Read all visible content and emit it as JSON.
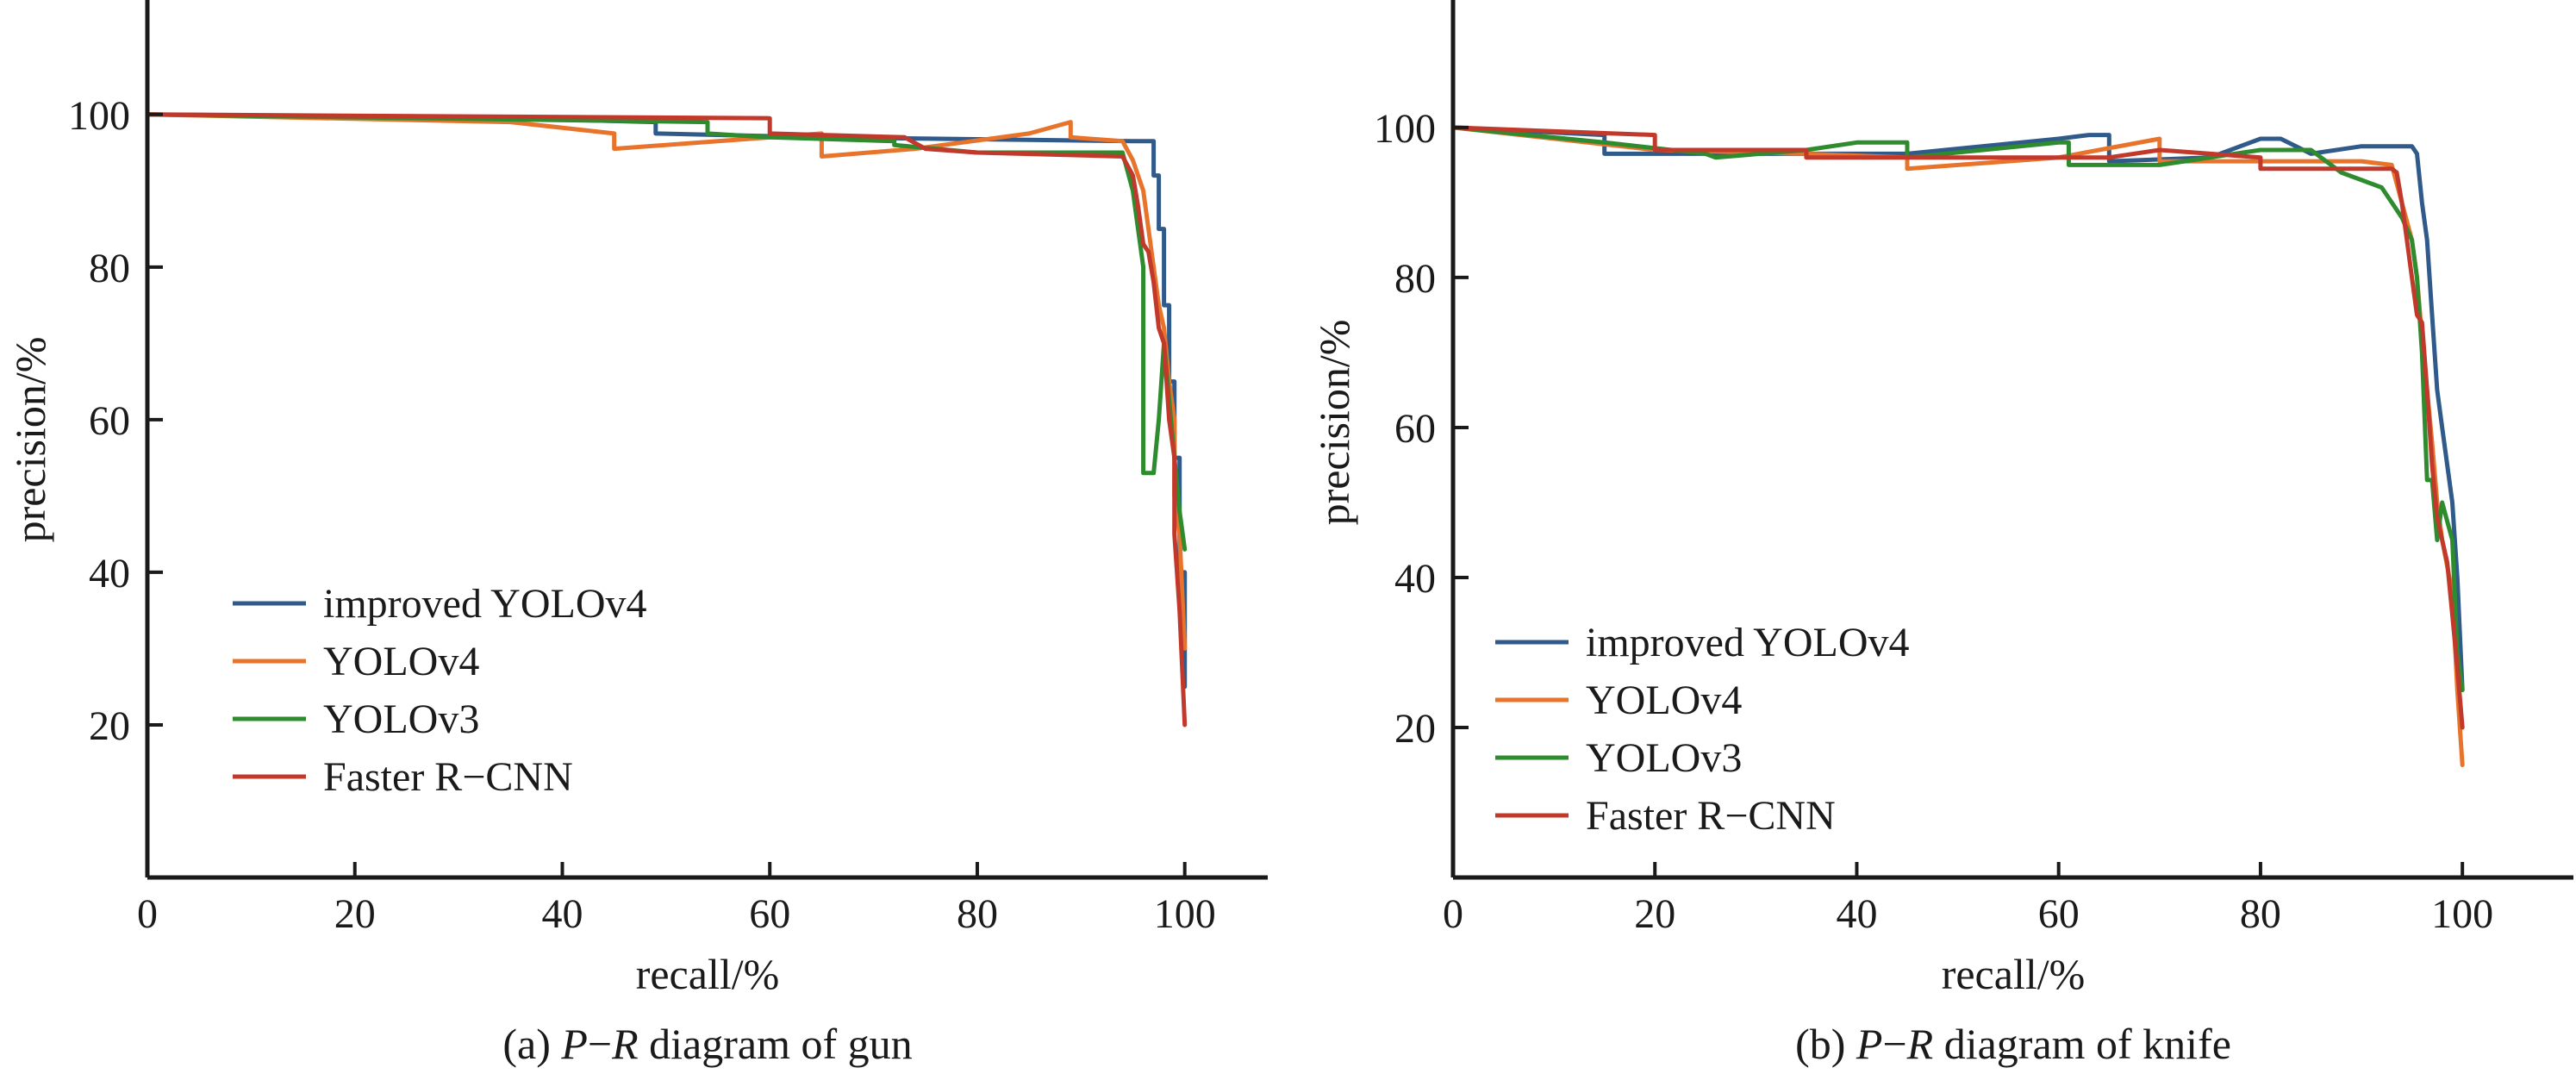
{
  "chart_data": [
    {
      "type": "line",
      "caption_prefix": "(a) ",
      "caption_em1": "P",
      "caption_dash": "−",
      "caption_em2": "R",
      "caption_rest": " diagram of gun",
      "xlabel": "recall/%",
      "ylabel": "precision/%",
      "xlim": [
        0,
        108
      ],
      "ylim": [
        0,
        115
      ],
      "xticks": [
        0,
        20,
        40,
        60,
        80,
        100
      ],
      "yticks": [
        20,
        40,
        60,
        80,
        100
      ],
      "legend_position": "lower-left",
      "series": [
        {
          "name": "improved YOLOv4",
          "color": "#2f5a8a",
          "x": [
            0,
            35,
            49,
            49,
            65,
            95,
            97,
            97,
            97.5,
            97.5,
            98,
            98,
            98.5,
            98.5,
            99,
            99,
            99.5,
            99.5,
            100,
            100
          ],
          "y": [
            100,
            99.5,
            99,
            97.5,
            97,
            96.5,
            96.5,
            92,
            92,
            85,
            85,
            75,
            75,
            65,
            65,
            55,
            55,
            40,
            40,
            25
          ]
        },
        {
          "name": "YOLOv4",
          "color": "#e8732a",
          "x": [
            0,
            35,
            45,
            45,
            55,
            65,
            65,
            74,
            85,
            89,
            89,
            94,
            95,
            96,
            96.5,
            97,
            97.5,
            98,
            98.5,
            99,
            99,
            99.5,
            100
          ],
          "y": [
            100,
            99,
            97.5,
            95.5,
            96.5,
            97.5,
            94.5,
            95.5,
            97.5,
            99,
            97,
            96.5,
            94,
            90,
            85,
            80,
            75,
            72,
            65,
            60,
            50,
            45,
            30
          ]
        },
        {
          "name": "YOLOv3",
          "color": "#2e8b2e",
          "x": [
            0,
            54,
            54,
            60,
            72,
            72,
            80,
            94,
            95,
            95.5,
            96,
            96,
            97,
            97.5,
            98,
            99,
            99.5,
            100
          ],
          "y": [
            100,
            99,
            97.5,
            97,
            96.5,
            96,
            95,
            95,
            90,
            85,
            80,
            53,
            53,
            60,
            70,
            55,
            48,
            43
          ]
        },
        {
          "name": "Faster R−CNN",
          "color": "#c0392b",
          "x": [
            0,
            60,
            60,
            73,
            75,
            80,
            94,
            95,
            95.5,
            96,
            96.5,
            97,
            97.5,
            98,
            98.5,
            99,
            99,
            99.5,
            100
          ],
          "y": [
            100,
            99.5,
            97.5,
            97,
            95.5,
            95,
            94.5,
            92,
            88,
            83,
            82,
            78,
            72,
            70,
            60,
            55,
            45,
            35,
            20
          ]
        }
      ]
    },
    {
      "type": "line",
      "caption_prefix": "(b) ",
      "caption_em1": "P",
      "caption_dash": "−",
      "caption_em2": "R",
      "caption_rest": " diagram of knife",
      "xlabel": "recall/%",
      "ylabel": "precision/%",
      "xlim": [
        0,
        111
      ],
      "ylim": [
        0,
        117
      ],
      "xticks": [
        0,
        20,
        40,
        60,
        80,
        100
      ],
      "yticks": [
        20,
        40,
        60,
        80,
        100
      ],
      "legend_position": "lower-left",
      "series": [
        {
          "name": "improved YOLOv4",
          "color": "#2f5a8a",
          "x": [
            0,
            15,
            15,
            25,
            45,
            60,
            63,
            65,
            65,
            75,
            80,
            82,
            85,
            90,
            93,
            95,
            95.5,
            96,
            96.5,
            97,
            97.5,
            98,
            98.5,
            99,
            99.5,
            100
          ],
          "y": [
            100,
            99,
            96.5,
            96.5,
            96.5,
            98.5,
            99,
            99,
            95.5,
            96,
            98.5,
            98.5,
            96.5,
            97.5,
            97.5,
            97.5,
            96.5,
            90,
            85,
            75,
            65,
            60,
            55,
            50,
            40,
            25
          ]
        },
        {
          "name": "YOLOv4",
          "color": "#e8732a",
          "x": [
            0,
            20,
            35,
            45,
            45,
            60,
            70,
            70,
            80,
            90,
            93,
            94,
            95,
            95.5,
            96,
            96.5,
            97,
            97.5,
            98,
            99,
            99.5,
            100
          ],
          "y": [
            100,
            97,
            96.5,
            96,
            94.5,
            96,
            98.5,
            95.5,
            95.5,
            95.5,
            95,
            90,
            85,
            80,
            72,
            65,
            58,
            50,
            45,
            38,
            25,
            15
          ]
        },
        {
          "name": "YOLOv3",
          "color": "#2e8b2e",
          "x": [
            0,
            15,
            25,
            26,
            35,
            40,
            45,
            45,
            60,
            61,
            61,
            70,
            75,
            80,
            85,
            88,
            92,
            93,
            94,
            95,
            95.5,
            96,
            96.5,
            97,
            97.5,
            98,
            99,
            99.5,
            100
          ],
          "y": [
            100,
            98,
            96.5,
            96,
            97,
            98,
            98,
            96,
            98,
            98,
            95,
            95,
            96,
            97,
            97,
            94,
            92,
            90,
            88,
            85,
            80,
            70,
            53,
            53,
            45,
            50,
            45,
            30,
            25
          ]
        },
        {
          "name": "Faster R−CNN",
          "color": "#c0392b",
          "x": [
            0,
            20,
            20,
            35,
            35,
            50,
            65,
            70,
            80,
            80,
            85,
            93,
            93.5,
            94,
            94.5,
            95,
            95.5,
            96,
            96.5,
            97,
            97.5,
            98,
            98.5,
            99,
            99.5,
            100
          ],
          "y": [
            100,
            99,
            97,
            97,
            96,
            96,
            96,
            97,
            96,
            94.5,
            94.5,
            94.5,
            94,
            90,
            85,
            80,
            75,
            74,
            65,
            55,
            48,
            45,
            42,
            35,
            28,
            20
          ]
        }
      ]
    }
  ]
}
